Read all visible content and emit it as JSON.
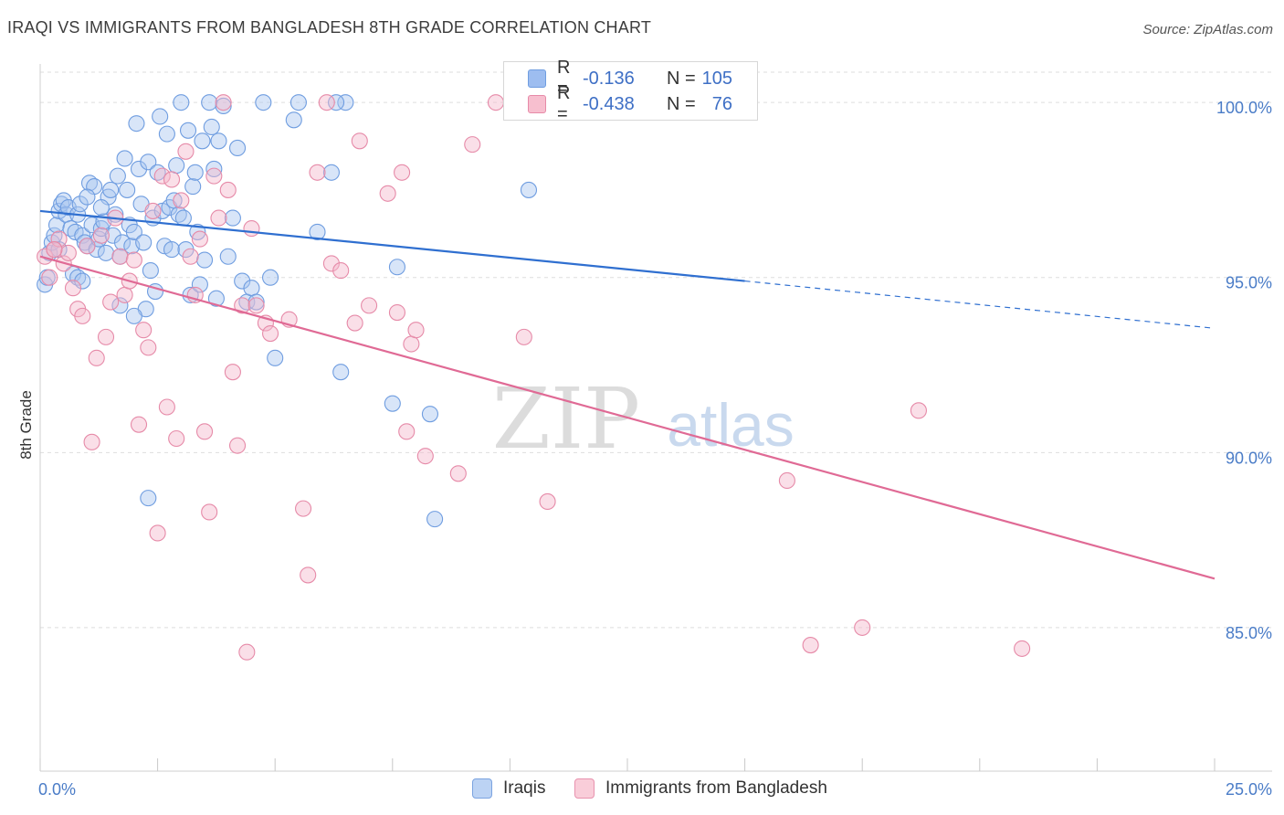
{
  "title": "IRAQI VS IMMIGRANTS FROM BANGLADESH 8TH GRADE CORRELATION CHART",
  "source": "Source: ZipAtlas.com",
  "watermark": {
    "zip": "ZIP",
    "atlas": "atlas"
  },
  "legend": {
    "rows": [
      {
        "r_label": "R =",
        "r_value": "-0.136",
        "n_label": "N =",
        "n_value": "105",
        "color": "#9dbdf0",
        "border": "#6f9de0"
      },
      {
        "r_label": "R =",
        "r_value": "-0.438",
        "n_label": "N =",
        "n_value": "76",
        "color": "#f7bfcf",
        "border": "#e68aa8"
      }
    ]
  },
  "bottom_legend": [
    {
      "label": "Iraqis",
      "color": "#bcd3f4",
      "border": "#7ba3e0"
    },
    {
      "label": "Immigrants from Bangladesh",
      "color": "#f9cdd9",
      "border": "#e892ae"
    }
  ],
  "chart_data": {
    "type": "scatter",
    "title": "IRAQI VS IMMIGRANTS FROM BANGLADESH 8TH GRADE CORRELATION CHART",
    "xlabel": "",
    "ylabel": "8th Grade",
    "xlim": [
      0,
      25
    ],
    "ylim": [
      80.9,
      101.1
    ],
    "x_tick_labels": [
      "0.0%",
      "25.0%"
    ],
    "y_ticks": [
      85,
      90,
      95,
      100
    ],
    "y_tick_labels": [
      "85.0%",
      "90.0%",
      "95.0%",
      "100.0%"
    ],
    "grid": true,
    "legend_position": "top-center",
    "series": [
      {
        "name": "Iraqis",
        "color": "#6f9de0",
        "fill": "#a9c6f0",
        "trend": {
          "x0": 0,
          "y0": 96.9,
          "x1": 15,
          "y1": 94.9,
          "dashed_to_x": 25,
          "dashed_to_y": 93.55,
          "color": "#2f6fd0"
        },
        "points": [
          [
            0.1,
            94.8
          ],
          [
            0.15,
            95.0
          ],
          [
            0.2,
            95.7
          ],
          [
            0.25,
            96.0
          ],
          [
            0.3,
            96.2
          ],
          [
            0.35,
            96.5
          ],
          [
            0.4,
            96.9
          ],
          [
            0.45,
            97.1
          ],
          [
            0.5,
            97.2
          ],
          [
            0.55,
            96.8
          ],
          [
            0.6,
            97.0
          ],
          [
            0.65,
            96.4
          ],
          [
            0.7,
            95.1
          ],
          [
            0.75,
            96.3
          ],
          [
            0.8,
            96.8
          ],
          [
            0.85,
            97.1
          ],
          [
            0.9,
            96.2
          ],
          [
            0.95,
            96.0
          ],
          [
            1.0,
            95.9
          ],
          [
            1.05,
            97.7
          ],
          [
            1.1,
            96.5
          ],
          [
            1.15,
            97.6
          ],
          [
            1.2,
            95.8
          ],
          [
            1.25,
            96.1
          ],
          [
            1.3,
            96.4
          ],
          [
            1.35,
            96.6
          ],
          [
            1.4,
            95.7
          ],
          [
            1.45,
            97.3
          ],
          [
            1.5,
            97.5
          ],
          [
            1.55,
            96.2
          ],
          [
            1.6,
            96.8
          ],
          [
            1.65,
            97.9
          ],
          [
            1.7,
            95.6
          ],
          [
            1.75,
            96.0
          ],
          [
            1.8,
            98.4
          ],
          [
            1.85,
            97.5
          ],
          [
            1.9,
            96.5
          ],
          [
            1.95,
            95.9
          ],
          [
            2.0,
            96.3
          ],
          [
            2.05,
            99.4
          ],
          [
            2.1,
            98.1
          ],
          [
            2.15,
            97.1
          ],
          [
            2.2,
            96.0
          ],
          [
            2.25,
            94.1
          ],
          [
            2.3,
            98.3
          ],
          [
            2.35,
            95.2
          ],
          [
            2.4,
            96.7
          ],
          [
            2.45,
            94.6
          ],
          [
            2.5,
            98.0
          ],
          [
            2.55,
            99.6
          ],
          [
            2.6,
            96.9
          ],
          [
            2.65,
            95.9
          ],
          [
            2.7,
            99.1
          ],
          [
            2.75,
            97.0
          ],
          [
            2.8,
            95.8
          ],
          [
            2.85,
            97.2
          ],
          [
            2.9,
            98.2
          ],
          [
            2.95,
            96.8
          ],
          [
            3.0,
            100.0
          ],
          [
            3.05,
            96.7
          ],
          [
            3.1,
            95.8
          ],
          [
            3.15,
            99.2
          ],
          [
            3.2,
            94.5
          ],
          [
            3.25,
            97.6
          ],
          [
            3.3,
            98.0
          ],
          [
            3.35,
            96.3
          ],
          [
            3.4,
            94.8
          ],
          [
            3.45,
            98.9
          ],
          [
            3.5,
            95.5
          ],
          [
            3.6,
            100.0
          ],
          [
            3.65,
            99.3
          ],
          [
            3.7,
            98.1
          ],
          [
            3.75,
            94.4
          ],
          [
            3.8,
            98.9
          ],
          [
            3.9,
            99.9
          ],
          [
            4.0,
            95.6
          ],
          [
            4.1,
            96.7
          ],
          [
            4.2,
            98.7
          ],
          [
            4.3,
            94.9
          ],
          [
            4.4,
            94.3
          ],
          [
            4.5,
            94.7
          ],
          [
            4.6,
            94.3
          ],
          [
            4.75,
            100.0
          ],
          [
            4.9,
            95.0
          ],
          [
            5.0,
            92.7
          ],
          [
            5.4,
            99.5
          ],
          [
            5.5,
            100.0
          ],
          [
            5.9,
            96.3
          ],
          [
            6.2,
            98.0
          ],
          [
            6.5,
            100.0
          ],
          [
            6.4,
            92.3
          ],
          [
            7.5,
            91.4
          ],
          [
            7.6,
            95.3
          ],
          [
            8.3,
            91.1
          ],
          [
            8.4,
            88.1
          ],
          [
            10.4,
            97.5
          ],
          [
            6.3,
            100.0
          ],
          [
            2.3,
            88.7
          ],
          [
            0.8,
            95.0
          ],
          [
            1.0,
            97.3
          ],
          [
            0.4,
            95.8
          ],
          [
            1.7,
            94.2
          ],
          [
            0.9,
            94.9
          ],
          [
            2.0,
            93.9
          ],
          [
            1.3,
            97.0
          ]
        ]
      },
      {
        "name": "Immigrants from Bangladesh",
        "color": "#e68aa8",
        "fill": "#f5b8cb",
        "trend": {
          "x0": 0,
          "y0": 95.6,
          "x1": 25,
          "y1": 86.4,
          "color": "#e06a95"
        },
        "points": [
          [
            0.1,
            95.6
          ],
          [
            0.2,
            95.0
          ],
          [
            0.3,
            95.8
          ],
          [
            0.4,
            96.1
          ],
          [
            0.5,
            95.4
          ],
          [
            0.6,
            95.7
          ],
          [
            0.7,
            94.7
          ],
          [
            0.8,
            94.1
          ],
          [
            0.9,
            93.9
          ],
          [
            1.0,
            95.9
          ],
          [
            1.1,
            90.3
          ],
          [
            1.2,
            92.7
          ],
          [
            1.3,
            96.2
          ],
          [
            1.4,
            93.3
          ],
          [
            1.5,
            94.3
          ],
          [
            1.6,
            96.7
          ],
          [
            1.7,
            95.6
          ],
          [
            1.8,
            94.5
          ],
          [
            1.9,
            94.9
          ],
          [
            2.0,
            95.5
          ],
          [
            2.1,
            90.8
          ],
          [
            2.2,
            93.5
          ],
          [
            2.3,
            93.0
          ],
          [
            2.4,
            96.9
          ],
          [
            2.5,
            87.7
          ],
          [
            2.6,
            97.9
          ],
          [
            2.7,
            91.3
          ],
          [
            2.8,
            97.8
          ],
          [
            2.9,
            90.4
          ],
          [
            3.0,
            97.2
          ],
          [
            3.1,
            98.6
          ],
          [
            3.2,
            95.6
          ],
          [
            3.3,
            94.5
          ],
          [
            3.4,
            96.1
          ],
          [
            3.5,
            90.6
          ],
          [
            3.6,
            88.3
          ],
          [
            3.7,
            97.9
          ],
          [
            3.8,
            96.7
          ],
          [
            3.9,
            100.0
          ],
          [
            4.0,
            97.5
          ],
          [
            4.1,
            92.3
          ],
          [
            4.2,
            90.2
          ],
          [
            4.3,
            94.2
          ],
          [
            4.4,
            84.3
          ],
          [
            4.5,
            96.4
          ],
          [
            4.6,
            94.2
          ],
          [
            4.8,
            93.7
          ],
          [
            4.9,
            93.4
          ],
          [
            5.3,
            93.8
          ],
          [
            5.6,
            88.4
          ],
          [
            5.7,
            86.5
          ],
          [
            5.9,
            98.0
          ],
          [
            6.1,
            100.0
          ],
          [
            6.2,
            95.4
          ],
          [
            6.4,
            95.2
          ],
          [
            6.7,
            93.7
          ],
          [
            6.8,
            98.9
          ],
          [
            7.0,
            94.2
          ],
          [
            7.4,
            97.4
          ],
          [
            7.6,
            94.0
          ],
          [
            7.7,
            98.0
          ],
          [
            7.8,
            90.6
          ],
          [
            7.9,
            93.1
          ],
          [
            8.0,
            93.5
          ],
          [
            8.2,
            89.9
          ],
          [
            8.9,
            89.4
          ],
          [
            9.2,
            98.8
          ],
          [
            9.7,
            100.0
          ],
          [
            10.3,
            93.3
          ],
          [
            10.8,
            88.6
          ],
          [
            15.9,
            89.2
          ],
          [
            16.4,
            84.5
          ],
          [
            17.5,
            85.0
          ],
          [
            18.7,
            91.2
          ],
          [
            20.9,
            84.4
          ],
          [
            0.3,
            95.8
          ]
        ]
      }
    ]
  }
}
